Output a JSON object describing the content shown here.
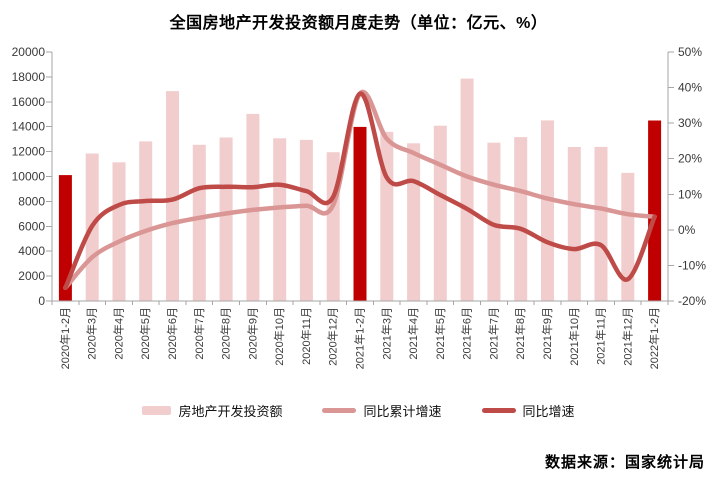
{
  "title": "全国房地产开发投资额月度走势（单位：亿元、%）",
  "footer": "数据来源：国家统计局",
  "colors": {
    "bar_pink": "#F2CDCD",
    "bar_highlight": "#C00000",
    "line_cumulative": "#D99694",
    "line_yoy": "#BE4B48",
    "axis": "#A6A6A6",
    "axis_text": "#3A3A3A"
  },
  "legend": [
    {
      "label": "房地产开发投资额",
      "type": "bar",
      "color": "#F2CDCD"
    },
    {
      "label": "同比累计增速",
      "type": "line",
      "color": "#D99694"
    },
    {
      "label": "同比增速",
      "type": "line",
      "color": "#BE4B48"
    }
  ],
  "chart_data": {
    "type": "bar+line",
    "title": "全国房地产开发投资额月度走势（单位：亿元、%）",
    "categories": [
      "2020年1-2月",
      "2020年3月",
      "2020年4月",
      "2020年5月",
      "2020年6月",
      "2020年7月",
      "2020年8月",
      "2020年9月",
      "2020年10月",
      "2020年11月",
      "2020年12月",
      "2021年1-2月",
      "2021年3月",
      "2021年4月",
      "2021年5月",
      "2021年6月",
      "2021年7月",
      "2021年8月",
      "2021年9月",
      "2021年10月",
      "2021年11月",
      "2021年12月",
      "2022年1-2月"
    ],
    "series": [
      {
        "name": "房地产开发投资额",
        "type": "bar",
        "axis": "left",
        "unit": "亿元",
        "color": "#F2CDCD",
        "highlight_color": "#C00000",
        "highlight_indices": [
          0,
          11,
          22
        ],
        "values": [
          10115,
          11848,
          11140,
          12817,
          16860,
          12545,
          13129,
          15030,
          13072,
          12936,
          11951,
          13986,
          13590,
          12664,
          14078,
          17861,
          12716,
          13165,
          14508,
          12366,
          12380,
          10288,
          14499
        ]
      },
      {
        "name": "同比累计增速",
        "type": "line",
        "axis": "right",
        "unit": "%",
        "color": "#D99694",
        "values": [
          -16.3,
          -7.7,
          -3.3,
          -0.3,
          1.9,
          3.4,
          4.6,
          5.6,
          6.3,
          6.8,
          7.0,
          38.3,
          25.6,
          21.6,
          18.3,
          15.0,
          12.7,
          10.9,
          8.8,
          7.2,
          6.0,
          4.4,
          3.7
        ]
      },
      {
        "name": "同比增速",
        "type": "line",
        "axis": "right",
        "unit": "%",
        "color": "#BE4B48",
        "values": [
          -16.3,
          1.1,
          7.0,
          8.1,
          8.5,
          11.7,
          12.1,
          12.0,
          12.7,
          10.9,
          9.3,
          38.3,
          14.7,
          13.7,
          9.8,
          5.9,
          1.4,
          0.3,
          -3.5,
          -5.4,
          -4.3,
          -13.9,
          3.7
        ]
      }
    ],
    "left_axis": {
      "min": 0,
      "max": 20000,
      "step": 2000,
      "tick_labels": [
        "0",
        "2000",
        "4000",
        "6000",
        "8000",
        "10000",
        "12000",
        "14000",
        "16000",
        "18000",
        "20000"
      ]
    },
    "right_axis": {
      "min": -20,
      "max": 50,
      "step": 10,
      "tick_labels": [
        "-20%",
        "-10%",
        "0%",
        "10%",
        "20%",
        "30%",
        "40%",
        "50%"
      ]
    },
    "grid": false,
    "legend_position": "bottom"
  }
}
